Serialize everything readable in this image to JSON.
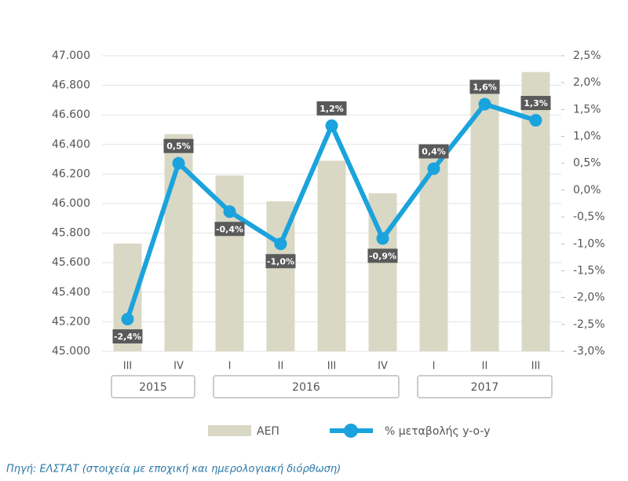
{
  "chart_data": {
    "type": "bar_line",
    "categories": [
      "III",
      "IV",
      "I",
      "II",
      "III",
      "IV",
      "I",
      "II",
      "III"
    ],
    "year_groups": [
      {
        "name": "2015",
        "count": 2
      },
      {
        "name": "2016",
        "count": 4
      },
      {
        "name": "2017",
        "count": 3
      }
    ],
    "series": [
      {
        "name": "ΑΕΠ",
        "type": "bar",
        "color": "#d9d8c5",
        "values": [
          45730,
          46470,
          46190,
          46015,
          46290,
          46070,
          46320,
          46740,
          46890
        ]
      },
      {
        "name": "% μεταβολής y-o-y",
        "type": "line",
        "color": "#1aa3dc",
        "axis": "y2",
        "values": [
          -2.4,
          0.5,
          -0.4,
          -1.0,
          1.2,
          -0.9,
          0.4,
          1.6,
          1.3
        ],
        "value_labels": [
          "-2,4%",
          "0,5%",
          "-0,4%",
          "-1,0%",
          "1,2%",
          "-0,9%",
          "0,4%",
          "1,6%",
          "1,3%"
        ]
      }
    ],
    "ylim": [
      45000,
      47000
    ],
    "yticks": [
      {
        "value": 45000,
        "label": "45.000"
      },
      {
        "value": 45200,
        "label": "45.200"
      },
      {
        "value": 45400,
        "label": "45.400"
      },
      {
        "value": 45600,
        "label": "45.600"
      },
      {
        "value": 45800,
        "label": "45.800"
      },
      {
        "value": 46000,
        "label": "46.000"
      },
      {
        "value": 46200,
        "label": "46.200"
      },
      {
        "value": 46400,
        "label": "46.400"
      },
      {
        "value": 46600,
        "label": "46.600"
      },
      {
        "value": 46800,
        "label": "46.800"
      },
      {
        "value": 47000,
        "label": "47.000"
      }
    ],
    "y2lim": [
      -3.0,
      2.5
    ],
    "y2ticks": [
      {
        "value": -3.0,
        "label": "-3,0%"
      },
      {
        "value": -2.5,
        "label": "-2,5%"
      },
      {
        "value": -2.0,
        "label": "-2,0%"
      },
      {
        "value": -1.5,
        "label": "-1,5%"
      },
      {
        "value": -1.0,
        "label": "-1,0%"
      },
      {
        "value": -0.5,
        "label": "-0,5%"
      },
      {
        "value": 0.0,
        "label": "0,0%"
      },
      {
        "value": 0.5,
        "label": "0,5%"
      },
      {
        "value": 1.0,
        "label": "1,0%"
      },
      {
        "value": 1.5,
        "label": "1,5%"
      },
      {
        "value": 2.0,
        "label": "2,0%"
      },
      {
        "value": 2.5,
        "label": "2,5%"
      }
    ],
    "grid": true,
    "label_color": "#5a5a5a",
    "source": "Πηγή: ΕΛΣΤΑΤ (στοιχεία με εποχική και ημερολογιακή διόρθωση)"
  }
}
